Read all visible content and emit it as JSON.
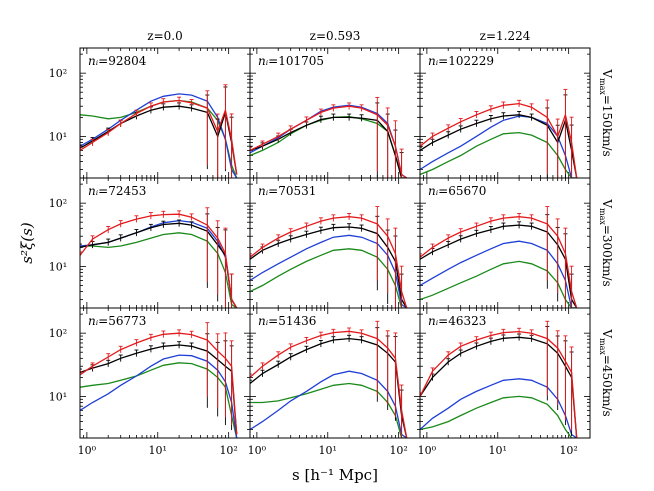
{
  "figure": {
    "column_titles": [
      "z=0.0",
      "z=0.593",
      "z=1.224"
    ],
    "row_labels": [
      "V$_{max}$=150km/s",
      "V$_{max}$=300km/s",
      "V$_{max}$=450km/s"
    ],
    "row_label_parts": [
      {
        "pre": "V",
        "sub": "max",
        "post": "=150km/s"
      },
      {
        "pre": "V",
        "sub": "max",
        "post": "=300km/s"
      },
      {
        "pre": "V",
        "sub": "max",
        "post": "=450km/s"
      }
    ],
    "ylabel": "s²ξ(s)",
    "xlabel": "s [h⁻¹ Mpc]",
    "panel_labels": [
      [
        "92804",
        "101705",
        "102229"
      ],
      [
        "72453",
        "70531",
        "65670"
      ],
      [
        "56773",
        "51436",
        "46323"
      ]
    ],
    "panel_label_prefix": "nᵢ=",
    "colors": {
      "black": "#000000",
      "red": "#e31a1c",
      "blue": "#1f3fd6",
      "green": "#1a8a1a"
    }
  },
  "chart_data": {
    "type": "line",
    "layout": "3x3 grid of panels sharing axes",
    "xscale": "log",
    "yscale": "log",
    "xlim": [
      0.8,
      200
    ],
    "ylim": [
      2.2,
      250
    ],
    "x_ticks": [
      "10⁰",
      "10¹",
      "10²"
    ],
    "y_ticks": [
      "10¹",
      "10²"
    ],
    "x": [
      0.8,
      1.2,
      2,
      3,
      5,
      8,
      12,
      20,
      30,
      50,
      70,
      90,
      110,
      130
    ],
    "series_colors": [
      "black",
      "red",
      "blue",
      "green"
    ],
    "panels": [
      {
        "row": 0,
        "col": 0,
        "series": {
          "black": [
            6.5,
            8.5,
            12,
            16,
            21,
            26,
            29,
            30,
            28,
            24,
            10,
            24,
            8,
            2.5
          ],
          "red": [
            6,
            8,
            11.5,
            16,
            23,
            30,
            35,
            37,
            34,
            28,
            12,
            26,
            9,
            2.5
          ],
          "blue": [
            7,
            9,
            13,
            18,
            26,
            36,
            43,
            47,
            45,
            36,
            20,
            9,
            3,
            2.2
          ],
          "green": [
            22,
            21,
            19,
            20,
            24,
            30,
            35,
            37,
            35,
            28,
            18,
            9,
            3.5,
            2.2
          ]
        }
      },
      {
        "row": 0,
        "col": 1,
        "series": {
          "black": [
            6,
            7,
            9,
            11.5,
            15,
            18.5,
            20,
            20,
            19.5,
            18,
            12,
            5,
            2.2,
            2.2
          ],
          "red": [
            6,
            7.5,
            10,
            13,
            18,
            24,
            28,
            30,
            28,
            22,
            15,
            7,
            2.5,
            2.2
          ],
          "blue": [
            5.5,
            7,
            9.5,
            13,
            18,
            25,
            29,
            31,
            29,
            23,
            16,
            7,
            2.5,
            2.2
          ],
          "green": [
            5,
            6,
            8,
            11,
            15,
            18,
            20,
            20.5,
            19,
            16,
            12,
            5,
            2.2,
            2.2
          ]
        }
      },
      {
        "row": 0,
        "col": 2,
        "series": {
          "black": [
            6,
            8,
            10.5,
            13,
            16,
            19,
            21,
            22,
            20,
            15,
            8,
            18,
            6,
            2.2
          ],
          "red": [
            7,
            10,
            13.5,
            17,
            22,
            27,
            31,
            33,
            29,
            20,
            10,
            22,
            8,
            2.2
          ],
          "blue": [
            3,
            4,
            5.5,
            7,
            10,
            14,
            18,
            21,
            20,
            16,
            10,
            5,
            2.2,
            2.2
          ],
          "green": [
            2.5,
            3,
            4,
            5,
            7,
            9,
            11,
            11.5,
            10.5,
            8,
            5,
            3,
            2.2,
            2.2
          ]
        }
      },
      {
        "row": 1,
        "col": 0,
        "series": {
          "black": [
            20,
            22,
            24,
            28,
            34,
            41,
            46,
            48,
            45,
            36,
            22,
            15,
            3,
            2.2
          ],
          "red": [
            15,
            27,
            38,
            47,
            56,
            63,
            66,
            67,
            60,
            45,
            28,
            16,
            3,
            2.2
          ],
          "blue": [
            21,
            22,
            24,
            28,
            34,
            42,
            49,
            53,
            50,
            40,
            25,
            14,
            3,
            2.2
          ],
          "green": [
            21,
            21,
            20,
            21,
            24,
            28,
            32,
            34,
            32,
            25,
            16,
            8,
            2.5,
            2.2
          ]
        }
      },
      {
        "row": 1,
        "col": 1,
        "series": {
          "black": [
            13,
            18,
            23,
            27,
            32,
            37,
            41,
            42,
            40,
            33,
            20,
            12,
            3,
            2.2
          ],
          "red": [
            14,
            20,
            28,
            35,
            43,
            52,
            58,
            61,
            58,
            47,
            30,
            16,
            4,
            2.2
          ],
          "blue": [
            6,
            8,
            11,
            14,
            19,
            24,
            29,
            31,
            29,
            23,
            15,
            8,
            2.5,
            2.2
          ],
          "green": [
            4,
            5,
            7,
            9,
            12,
            15,
            18,
            19,
            18,
            14,
            9,
            5,
            2.2,
            2.2
          ]
        }
      },
      {
        "row": 1,
        "col": 2,
        "series": {
          "black": [
            13,
            17,
            22,
            27,
            33,
            38,
            43,
            45,
            43,
            35,
            22,
            13,
            3,
            2.2
          ],
          "red": [
            14,
            20,
            28,
            35,
            43,
            52,
            58,
            61,
            58,
            47,
            30,
            16,
            4,
            2.2
          ],
          "blue": [
            5,
            6.5,
            9,
            11.5,
            15,
            19,
            23,
            25,
            23,
            18,
            11,
            6,
            2.2,
            2.2
          ],
          "green": [
            3,
            3.5,
            4.5,
            5.5,
            7,
            9,
            11,
            12,
            11,
            8.5,
            5.5,
            3,
            2.2,
            2.2
          ]
        }
      },
      {
        "row": 2,
        "col": 0,
        "series": {
          "black": [
            24,
            28,
            33,
            40,
            48,
            56,
            62,
            65,
            62,
            52,
            38,
            30,
            25,
            2.5
          ],
          "red": [
            22,
            30,
            42,
            55,
            70,
            85,
            96,
            100,
            95,
            78,
            52,
            40,
            30,
            2.5
          ],
          "blue": [
            6,
            8,
            11,
            15,
            21,
            30,
            39,
            45,
            44,
            36,
            26,
            17,
            8,
            2.2
          ],
          "green": [
            14,
            15,
            16,
            18,
            21,
            26,
            31,
            34,
            33,
            27,
            20,
            14,
            5,
            2.2
          ]
        }
      },
      {
        "row": 2,
        "col": 1,
        "series": {
          "black": [
            16,
            23,
            32,
            42,
            55,
            68,
            78,
            82,
            78,
            65,
            48,
            35,
            5,
            2.2
          ],
          "red": [
            20,
            30,
            45,
            60,
            76,
            92,
            102,
            107,
            100,
            82,
            58,
            40,
            6,
            2.2
          ],
          "blue": [
            3,
            4,
            6,
            8.5,
            12,
            17,
            22,
            25,
            23,
            18,
            12,
            7,
            2.5,
            2.2
          ],
          "green": [
            8,
            8,
            8.5,
            9.5,
            11,
            13,
            15,
            16,
            15,
            12,
            8,
            5,
            2.2,
            2.2
          ]
        }
      },
      {
        "row": 2,
        "col": 2,
        "series": {
          "black": [
            10,
            20,
            35,
            48,
            62,
            74,
            83,
            86,
            82,
            68,
            48,
            30,
            20,
            2.2
          ],
          "red": [
            10,
            25,
            45,
            62,
            78,
            92,
            102,
            106,
            100,
            82,
            58,
            36,
            24,
            2.2
          ],
          "blue": [
            3,
            4.5,
            6.5,
            9,
            12,
            15,
            18,
            19,
            18,
            14,
            9,
            5,
            2.5,
            2.2
          ],
          "green": [
            3,
            3.3,
            4,
            5,
            6.5,
            8,
            9.5,
            10,
            9.5,
            7.5,
            5,
            3,
            2.2,
            2.2
          ]
        }
      }
    ]
  }
}
